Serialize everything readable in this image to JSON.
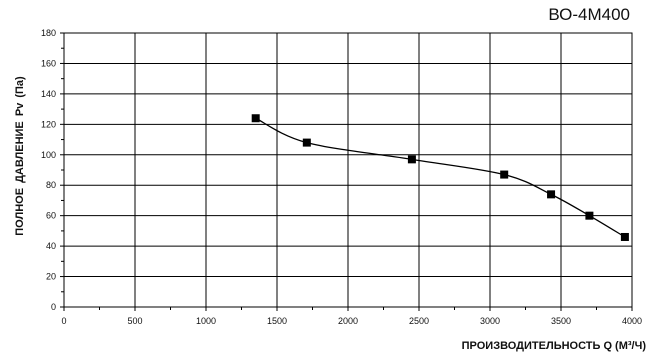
{
  "chart_data": {
    "type": "line",
    "title": "ВО-4М400",
    "xlabel": "ПРОИЗВОДИТЕЛЬНОСТЬ   Q  (М³/Ч)",
    "ylabel": "ПОЛНОЕ  ДАВЛЕНИЕ   Pv (Па)",
    "xlim": [
      0,
      4000
    ],
    "ylim": [
      0,
      180
    ],
    "x_ticks": [
      0,
      500,
      1000,
      1500,
      2000,
      2500,
      3000,
      3500,
      4000
    ],
    "y_ticks": [
      0,
      20,
      40,
      60,
      80,
      100,
      120,
      140,
      160,
      180
    ],
    "grid": true,
    "series": [
      {
        "x": [
          1350,
          1710,
          2450,
          3100,
          3430,
          3700,
          3950
        ],
        "y": [
          124,
          108,
          97,
          87,
          74,
          60,
          46
        ],
        "color": "#000000",
        "marker": "square"
      }
    ]
  }
}
